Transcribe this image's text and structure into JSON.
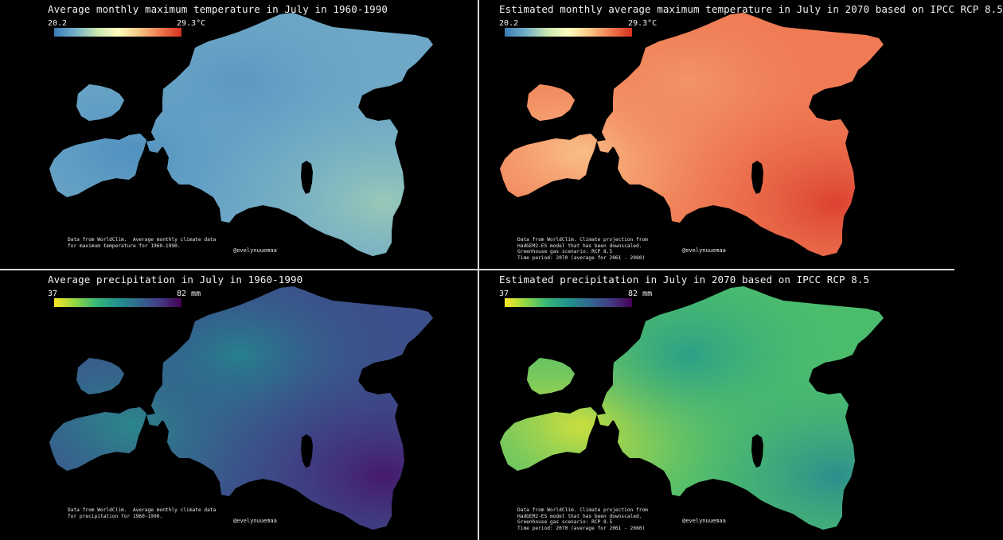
{
  "panels": [
    {
      "title": "Average monthly maximum temperature in July in 1960-1990",
      "legend": {
        "min": "20.2",
        "max": "29.3°C"
      },
      "note": [
        "Data from WorldClim.  Average monthly climate data",
        "for maximum temperature for 1960-1990."
      ],
      "credit": "@evelynuuemaa",
      "colors": {
        "base": "#6ea8c6",
        "a": "#4f8fc0",
        "b": "#98c9b8",
        "c": "#5c97c2"
      }
    },
    {
      "title": "Estimated monthly average maximum temperature in July in 2070 based on IPCC RCP 8.5",
      "legend": {
        "min": "20.2",
        "max": "29.3°C"
      },
      "note": [
        "Data from WorldClim. Climate projection from",
        "HadGEM2-ES model that has been downscaled.",
        "Greenhouse gas scenario: RCP 8.5",
        "Time period: 2070 (average for 2061 - 2080)"
      ],
      "credit": "@evelynuuemaa",
      "colors": {
        "base": "#ef7a53",
        "a": "#fbc58c",
        "b": "#dc4230",
        "c": "#f39467"
      }
    },
    {
      "title": "Average precipitation in July in 1960-1990",
      "legend": {
        "min": "37",
        "max": "82 mm"
      },
      "note": [
        "Data from WorldClim.  Average monthly climate data",
        "for precipitation for 1960-1990."
      ],
      "credit": "@evelynuuemaa",
      "colors": {
        "base": "#3c4f8a",
        "a": "#2a8c8c",
        "b": "#46196e",
        "c": "#26808e"
      }
    },
    {
      "title": "Estimated precipitation in July in 2070 based on IPCC RCP 8.5",
      "legend": {
        "min": "37",
        "max": "82 mm"
      },
      "note": [
        "Data from WorldClim. Climate projection from",
        "HadGEM2-ES model that has been downscaled.",
        "Greenhouse gas scenario: RCP 8.5",
        "Time period: 2070 (average for 2061 - 2080)"
      ],
      "credit": "@evelynuuemaa",
      "colors": {
        "base": "#4cbd6d",
        "a": "#d8e23a",
        "b": "#2e8d8e",
        "c": "#2b9f87"
      }
    }
  ]
}
